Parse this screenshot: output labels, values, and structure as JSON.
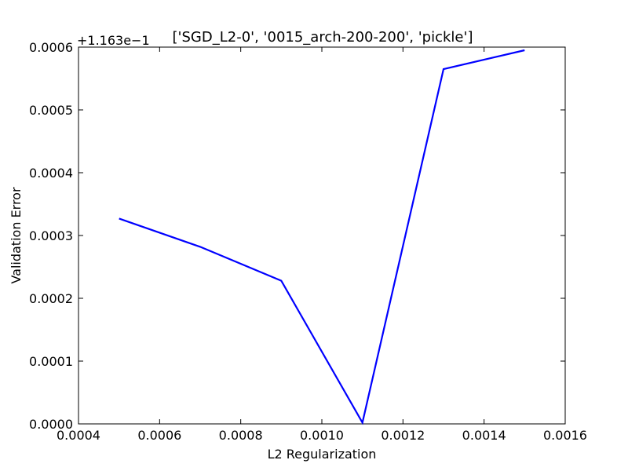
{
  "chart_data": {
    "type": "line",
    "title": "['SGD_L2-0', '0015_arch-200-200', 'pickle']",
    "xlabel": "L2 Regularization",
    "ylabel": "Validation Error",
    "offset_label": "+1.163e−1",
    "xlim": [
      0.0004,
      0.0016
    ],
    "ylim": [
      0.0,
      0.0006
    ],
    "xticks": [
      "0.0004",
      "0.0006",
      "0.0008",
      "0.0010",
      "0.0012",
      "0.0014",
      "0.0016"
    ],
    "yticks": [
      "0.0000",
      "0.0001",
      "0.0002",
      "0.0003",
      "0.0004",
      "0.0005",
      "0.0006"
    ],
    "grid": false,
    "line_color": "#0000ff",
    "series": [
      {
        "x": [
          0.0005,
          0.0007,
          0.0009,
          0.0011,
          0.0013,
          0.0015
        ],
        "y": [
          0.000327,
          0.000282,
          0.000228,
          2e-06,
          0.000565,
          0.000595
        ]
      }
    ]
  }
}
